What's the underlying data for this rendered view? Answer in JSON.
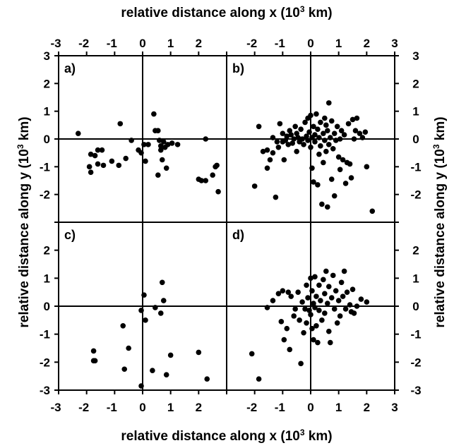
{
  "chart_data": {
    "type": "scatter",
    "top_xlabel": "relative distance along x (10^3 km)",
    "bottom_xlabel": "relative distance along x (10^3 km)",
    "left_ylabel": "relative distance along y (10^3 km)",
    "right_ylabel": "relative distance along y (10^3 km)",
    "xlim": [
      -3,
      3
    ],
    "ylim": [
      -3,
      3
    ],
    "x_tick_labels_left_panels": [
      "-3",
      "-2",
      "-1",
      "0",
      "1",
      "2"
    ],
    "x_tick_labels_right_panels": [
      "-2",
      "-1",
      "0",
      "1",
      "2",
      "3"
    ],
    "y_tick_labels_top_panels": [
      "3",
      "2",
      "1",
      "0",
      "-1",
      "-2"
    ],
    "y_tick_labels_bottom_panels": [
      "2",
      "1",
      "0",
      "-1",
      "-2",
      "-3"
    ],
    "panels": [
      {
        "label": "a)",
        "points": [
          [
            -2.3,
            0.2
          ],
          [
            -1.9,
            -1.0
          ],
          [
            -1.85,
            -1.2
          ],
          [
            -1.85,
            -0.55
          ],
          [
            -1.7,
            -0.6
          ],
          [
            -1.6,
            -0.4
          ],
          [
            -1.6,
            -0.9
          ],
          [
            -1.45,
            -0.4
          ],
          [
            -1.4,
            -0.95
          ],
          [
            -1.1,
            -0.8
          ],
          [
            -0.85,
            -0.95
          ],
          [
            -0.8,
            0.55
          ],
          [
            -0.6,
            -0.7
          ],
          [
            -0.4,
            -0.05
          ],
          [
            -0.15,
            -0.4
          ],
          [
            -0.05,
            -0.5
          ],
          [
            0.05,
            -0.2
          ],
          [
            0.1,
            -0.8
          ],
          [
            0.2,
            -0.2
          ],
          [
            0.4,
            0.9
          ],
          [
            0.45,
            0.3
          ],
          [
            0.55,
            0.3
          ],
          [
            0.55,
            -1.3
          ],
          [
            0.6,
            -0.05
          ],
          [
            0.65,
            -0.4
          ],
          [
            0.65,
            -0.25
          ],
          [
            0.7,
            -0.75
          ],
          [
            0.75,
            -0.1
          ],
          [
            0.8,
            -0.3
          ],
          [
            0.85,
            -1.05
          ],
          [
            0.9,
            -0.2
          ],
          [
            1.05,
            -0.15
          ],
          [
            1.25,
            -0.2
          ],
          [
            2.0,
            -1.45
          ],
          [
            2.1,
            -1.5
          ],
          [
            2.25,
            0.0
          ],
          [
            2.25,
            -1.5
          ],
          [
            2.5,
            -1.3
          ],
          [
            2.6,
            -1.0
          ],
          [
            2.65,
            -0.95
          ],
          [
            2.7,
            -1.9
          ]
        ]
      },
      {
        "label": "b)",
        "points": [
          [
            -2.0,
            -1.7
          ],
          [
            -1.85,
            0.45
          ],
          [
            -1.7,
            -0.45
          ],
          [
            -1.55,
            -0.4
          ],
          [
            -1.55,
            -1.05
          ],
          [
            -1.45,
            -0.75
          ],
          [
            -1.35,
            -0.5
          ],
          [
            -1.35,
            0.05
          ],
          [
            -1.25,
            -2.1
          ],
          [
            -1.2,
            -0.1
          ],
          [
            -1.15,
            -0.3
          ],
          [
            -1.1,
            0.55
          ],
          [
            -1.0,
            -0.1
          ],
          [
            -1.0,
            0.2
          ],
          [
            -0.95,
            -0.75
          ],
          [
            -0.9,
            -0.05
          ],
          [
            -0.85,
            0.1
          ],
          [
            -0.8,
            -0.2
          ],
          [
            -0.75,
            0.3
          ],
          [
            -0.7,
            0.15
          ],
          [
            -0.65,
            -0.15
          ],
          [
            -0.6,
            0.0
          ],
          [
            -0.55,
            0.45
          ],
          [
            -0.5,
            -0.45
          ],
          [
            -0.5,
            0.2
          ],
          [
            -0.45,
            0.05
          ],
          [
            -0.4,
            -0.1
          ],
          [
            -0.35,
            0.35
          ],
          [
            -0.3,
            0.0
          ],
          [
            -0.25,
            -0.2
          ],
          [
            -0.2,
            0.6
          ],
          [
            -0.15,
            0.1
          ],
          [
            -0.1,
            -0.05
          ],
          [
            -0.1,
            0.75
          ],
          [
            -0.05,
            0.25
          ],
          [
            0.0,
            -0.3
          ],
          [
            0.0,
            0.85
          ],
          [
            0.05,
            0.05
          ],
          [
            0.05,
            -1.05
          ],
          [
            0.1,
            0.45
          ],
          [
            0.1,
            -1.55
          ],
          [
            0.15,
            0.15
          ],
          [
            0.15,
            -0.1
          ],
          [
            0.2,
            0.9
          ],
          [
            0.25,
            -1.65
          ],
          [
            0.25,
            0.35
          ],
          [
            0.3,
            -0.55
          ],
          [
            0.3,
            0.05
          ],
          [
            0.35,
            -0.25
          ],
          [
            0.35,
            0.6
          ],
          [
            0.4,
            -2.35
          ],
          [
            0.45,
            0.2
          ],
          [
            0.45,
            -0.85
          ],
          [
            0.5,
            0.75
          ],
          [
            0.5,
            -0.05
          ],
          [
            0.55,
            0.5
          ],
          [
            0.55,
            -0.45
          ],
          [
            0.6,
            -2.45
          ],
          [
            0.6,
            0.3
          ],
          [
            0.65,
            1.3
          ],
          [
            0.65,
            -0.2
          ],
          [
            0.7,
            0.05
          ],
          [
            0.75,
            -1.45
          ],
          [
            0.75,
            0.65
          ],
          [
            0.8,
            -0.35
          ],
          [
            0.85,
            -2.05
          ],
          [
            0.85,
            0.2
          ],
          [
            0.9,
            -0.05
          ],
          [
            0.95,
            0.45
          ],
          [
            1.0,
            -0.65
          ],
          [
            1.05,
            0.0
          ],
          [
            1.05,
            -1.1
          ],
          [
            1.1,
            0.3
          ],
          [
            1.15,
            -0.75
          ],
          [
            1.2,
            0.15
          ],
          [
            1.25,
            -1.6
          ],
          [
            1.3,
            -0.85
          ],
          [
            1.35,
            0.55
          ],
          [
            1.4,
            -0.9
          ],
          [
            1.45,
            -1.4
          ],
          [
            1.5,
            0.7
          ],
          [
            1.55,
            0.0
          ],
          [
            1.6,
            0.3
          ],
          [
            1.65,
            0.75
          ],
          [
            1.75,
            0.2
          ],
          [
            1.85,
            0.05
          ],
          [
            1.95,
            0.25
          ],
          [
            2.0,
            -1.0
          ],
          [
            2.2,
            -2.6
          ]
        ]
      },
      {
        "label": "c)",
        "points": [
          [
            -1.75,
            -1.6
          ],
          [
            -1.75,
            -1.95
          ],
          [
            -1.7,
            -1.95
          ],
          [
            -0.7,
            -0.7
          ],
          [
            -0.65,
            -2.25
          ],
          [
            -0.5,
            -1.5
          ],
          [
            -0.05,
            -0.15
          ],
          [
            -0.05,
            -2.85
          ],
          [
            0.05,
            0.4
          ],
          [
            0.1,
            -0.5
          ],
          [
            0.35,
            -2.3
          ],
          [
            0.45,
            -0.05
          ],
          [
            0.65,
            -0.25
          ],
          [
            0.7,
            0.85
          ],
          [
            0.75,
            0.2
          ],
          [
            0.85,
            -2.45
          ],
          [
            1.0,
            -1.75
          ],
          [
            2.0,
            -1.65
          ],
          [
            2.3,
            -2.6
          ]
        ]
      },
      {
        "label": "d)",
        "points": [
          [
            -2.1,
            -1.7
          ],
          [
            -1.85,
            -2.6
          ],
          [
            -1.55,
            -0.05
          ],
          [
            -1.35,
            0.2
          ],
          [
            -1.15,
            0.45
          ],
          [
            -1.05,
            -0.55
          ],
          [
            -1.0,
            0.55
          ],
          [
            -0.95,
            -1.2
          ],
          [
            -0.85,
            -0.8
          ],
          [
            -0.8,
            0.5
          ],
          [
            -0.75,
            -1.55
          ],
          [
            -0.7,
            0.35
          ],
          [
            -0.6,
            -0.35
          ],
          [
            -0.55,
            -0.1
          ],
          [
            -0.45,
            0.5
          ],
          [
            -0.4,
            -0.5
          ],
          [
            -0.35,
            -2.05
          ],
          [
            -0.3,
            0.15
          ],
          [
            -0.25,
            -0.95
          ],
          [
            -0.2,
            -0.1
          ],
          [
            -0.15,
            0.75
          ],
          [
            -0.15,
            -0.6
          ],
          [
            -0.1,
            0.3
          ],
          [
            -0.05,
            -0.15
          ],
          [
            0.0,
            1.0
          ],
          [
            0.0,
            -0.3
          ],
          [
            0.05,
            0.55
          ],
          [
            0.05,
            -0.8
          ],
          [
            0.1,
            0.1
          ],
          [
            0.1,
            -1.2
          ],
          [
            0.15,
            -0.05
          ],
          [
            0.15,
            1.05
          ],
          [
            0.2,
            0.35
          ],
          [
            0.2,
            -0.7
          ],
          [
            0.25,
            -1.3
          ],
          [
            0.3,
            0.75
          ],
          [
            0.3,
            -0.15
          ],
          [
            0.35,
            0.2
          ],
          [
            0.4,
            -0.5
          ],
          [
            0.45,
            0.95
          ],
          [
            0.5,
            0.45
          ],
          [
            0.5,
            -0.25
          ],
          [
            0.55,
            1.25
          ],
          [
            0.6,
            0.1
          ],
          [
            0.65,
            -0.9
          ],
          [
            0.65,
            0.7
          ],
          [
            0.7,
            -1.3
          ],
          [
            0.75,
            0.3
          ],
          [
            0.8,
            1.1
          ],
          [
            0.85,
            -0.1
          ],
          [
            0.9,
            0.55
          ],
          [
            0.95,
            -0.6
          ],
          [
            1.0,
            0.2
          ],
          [
            1.05,
            -0.35
          ],
          [
            1.1,
            0.85
          ],
          [
            1.15,
            0.35
          ],
          [
            1.2,
            1.25
          ],
          [
            1.25,
            -0.1
          ],
          [
            1.3,
            0.5
          ],
          [
            1.4,
            0.05
          ],
          [
            1.45,
            -0.2
          ],
          [
            1.5,
            0.6
          ],
          [
            1.55,
            -0.25
          ],
          [
            1.65,
            0.0
          ],
          [
            1.8,
            0.25
          ],
          [
            2.0,
            0.15
          ]
        ]
      }
    ]
  }
}
